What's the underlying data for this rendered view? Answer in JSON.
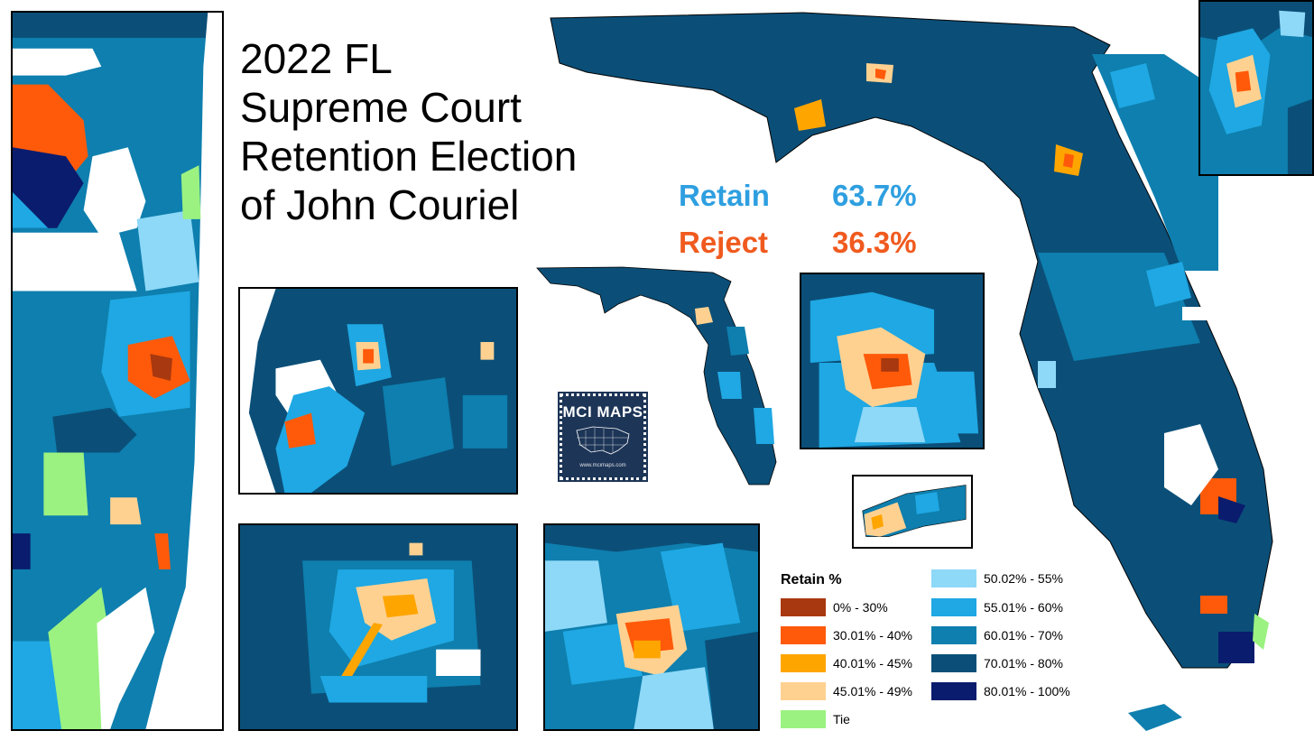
{
  "title": {
    "lines": [
      "2022 FL",
      "Supreme Court",
      "Retention Election",
      "of John Couriel"
    ]
  },
  "results": {
    "retain": {
      "label": "Retain",
      "value": "63.7%"
    },
    "reject": {
      "label": "Reject",
      "value": "36.3%"
    }
  },
  "logo": {
    "text": "MCI MAPS",
    "url": "www.mcimaps.com"
  },
  "legend": {
    "title": "Retain %",
    "items": [
      {
        "label": "0% - 30%",
        "color": "#A8380F"
      },
      {
        "label": "30.01% - 40%",
        "color": "#FF5A0A"
      },
      {
        "label": "40.01% - 45%",
        "color": "#FFA500"
      },
      {
        "label": "45.01% - 49%",
        "color": "#FFD191"
      },
      {
        "label": "Tie",
        "color": "#9BF281"
      },
      {
        "label": "50.02% - 55%",
        "color": "#8ED8F8"
      },
      {
        "label": "55.01% - 60%",
        "color": "#1FA8E3"
      },
      {
        "label": "60.01% - 70%",
        "color": "#0E7FAE"
      },
      {
        "label": "70.01% - 80%",
        "color": "#0B4F78"
      },
      {
        "label": "80.01% - 100%",
        "color": "#0A1C6E"
      }
    ]
  },
  "colors": {
    "retain": "#2E9FE0",
    "reject": "#F05A1E",
    "water": "#FFFFFF",
    "border": "#000000"
  }
}
